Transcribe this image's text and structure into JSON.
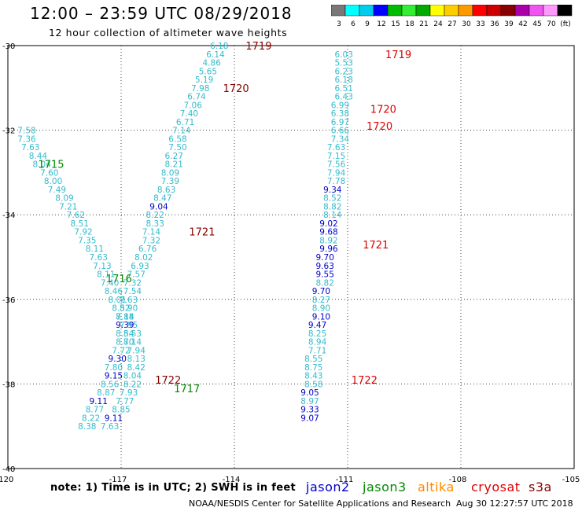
{
  "header": {
    "title": "12:00 – 23:59 UTC 08/29/2018",
    "subtitle": "12 hour collection of altimeter wave heights"
  },
  "footer": {
    "note": "note: 1) Time is in UTC; 2) SWH is in feet",
    "satellites": [
      {
        "name": "jason2",
        "color": "#0000cc"
      },
      {
        "name": "jason3",
        "color": "#008800"
      },
      {
        "name": "altika",
        "color": "#ff8800"
      },
      {
        "name": "cryosat",
        "color": "#dd0000"
      },
      {
        "name": "s3a",
        "color": "#880000"
      }
    ],
    "credit": "NOAA/NESDIS Center for Satellite Applications and Research",
    "timestamp": "Aug 30 12:27:57 UTC 2018"
  },
  "colors": {
    "low_swh": "#33bbcc",
    "mid_swh": "#0000cc",
    "time_red": "#dd0000",
    "time_dark": "#880000",
    "time_green": "#008800"
  },
  "chart_data": {
    "type": "scatter",
    "title": "12:00 – 23:59 UTC 08/29/2018",
    "subtitle": "12 hour collection of altimeter wave heights",
    "xlabel": "",
    "ylabel": "",
    "xlim": [
      -120,
      -105
    ],
    "ylim": [
      -40,
      -30
    ],
    "x_ticks": [
      "-120",
      "-117",
      "-114",
      "-111",
      "-108",
      "-105"
    ],
    "y_ticks": [
      "-30",
      "-32",
      "-34",
      "-36",
      "-38",
      "-40"
    ],
    "grid": true,
    "legend": {
      "labels": [
        "3",
        "6",
        "9",
        "12",
        "15",
        "18",
        "21",
        "24",
        "27",
        "30",
        "33",
        "36",
        "39",
        "42",
        "45",
        "70",
        "(ft)"
      ],
      "colors": [
        "#777777",
        "#00ffff",
        "#00ccee",
        "#0000ff",
        "#00bb00",
        "#33ee33",
        "#00aa00",
        "#ffff00",
        "#ffcc00",
        "#ff9900",
        "#ff0000",
        "#cc0000",
        "#880000",
        "#aa00aa",
        "#ee55ee",
        "#ff99ff",
        "#000000"
      ]
    },
    "series": [
      {
        "values": [
          [
            -114.4,
            -30.0,
            "6.18"
          ],
          [
            -114.5,
            -30.2,
            "6.14"
          ],
          [
            -114.6,
            -30.4,
            "4.86"
          ],
          [
            -114.7,
            -30.6,
            "5.65"
          ],
          [
            -114.8,
            -30.8,
            "5.19"
          ],
          [
            -114.9,
            -31.0,
            "7.98"
          ],
          [
            -115.0,
            -31.2,
            "6.74"
          ],
          [
            -115.1,
            -31.4,
            "7.06"
          ],
          [
            -115.2,
            -31.6,
            "7.40"
          ],
          [
            -115.3,
            -31.8,
            "6.71"
          ],
          [
            -115.4,
            -32.0,
            "7.14"
          ],
          [
            -115.5,
            -32.2,
            "6.58"
          ],
          [
            -115.5,
            -32.4,
            "7.50"
          ],
          [
            -115.6,
            -32.6,
            "6.27"
          ],
          [
            -115.6,
            -32.8,
            "8.21"
          ],
          [
            -115.7,
            -33.0,
            "8.09"
          ],
          [
            -115.7,
            -33.2,
            "7.39"
          ],
          [
            -115.8,
            -33.4,
            "8.63"
          ],
          [
            -115.9,
            -33.6,
            "8.47"
          ],
          [
            -116.0,
            -33.8,
            "9.04"
          ],
          [
            -116.1,
            -34.0,
            "8.22"
          ],
          [
            -116.1,
            -34.2,
            "8.33"
          ],
          [
            -116.2,
            -34.4,
            "7.14"
          ],
          [
            -116.2,
            -34.6,
            "7.32"
          ],
          [
            -116.3,
            -34.8,
            "6.76"
          ],
          [
            -116.4,
            -35.0,
            "8.02"
          ],
          [
            -116.5,
            -35.2,
            "6.93"
          ],
          [
            -116.6,
            -35.4,
            "7.57"
          ],
          [
            -116.7,
            -35.6,
            "7.32"
          ],
          [
            -116.7,
            -35.8,
            "7.54"
          ],
          [
            -116.8,
            -36.0,
            "7.63"
          ],
          [
            -116.8,
            -36.2,
            "8.90"
          ],
          [
            -116.9,
            -36.4,
            "8.14"
          ],
          [
            -116.9,
            -36.6,
            "9.39"
          ],
          [
            -116.9,
            -36.8,
            "8.54"
          ],
          [
            -116.9,
            -37.0,
            "8.70"
          ],
          [
            -117.0,
            -37.2,
            "7.72"
          ],
          [
            -117.1,
            -37.4,
            "9.30"
          ],
          [
            -117.2,
            -37.6,
            "7.80"
          ],
          [
            -117.2,
            -37.8,
            "9.15"
          ],
          [
            -117.3,
            -38.0,
            "8.56"
          ],
          [
            -117.4,
            -38.2,
            "8.87"
          ],
          [
            -117.6,
            -38.4,
            "9.11"
          ],
          [
            -117.7,
            -38.6,
            "8.77"
          ],
          [
            -117.8,
            -38.8,
            "8.22"
          ],
          [
            -117.9,
            -39.0,
            "8.38"
          ]
        ]
      },
      {
        "values": [
          [
            -119.5,
            -32.0,
            "7.58"
          ],
          [
            -119.5,
            -32.2,
            "7.36"
          ],
          [
            -119.4,
            -32.4,
            "7.63"
          ],
          [
            -119.2,
            -32.6,
            "8.44"
          ],
          [
            -119.1,
            -32.8,
            "8.04"
          ],
          [
            -118.9,
            -33.0,
            "7.60"
          ],
          [
            -118.8,
            -33.2,
            "8.00"
          ],
          [
            -118.7,
            -33.4,
            "7.49"
          ],
          [
            -118.5,
            -33.6,
            "8.09"
          ],
          [
            -118.4,
            -33.8,
            "7.21"
          ],
          [
            -118.2,
            -34.0,
            "7.62"
          ],
          [
            -118.1,
            -34.2,
            "8.51"
          ],
          [
            -118.0,
            -34.4,
            "7.92"
          ],
          [
            -117.9,
            -34.6,
            "7.35"
          ],
          [
            -117.7,
            -34.8,
            "8.11"
          ],
          [
            -117.6,
            -35.0,
            "7.63"
          ],
          [
            -117.5,
            -35.2,
            "7.13"
          ],
          [
            -117.4,
            -35.4,
            "8.11"
          ],
          [
            -117.3,
            -35.6,
            "7.40"
          ],
          [
            -117.2,
            -35.8,
            "8.46"
          ],
          [
            -117.1,
            -36.0,
            "8.01"
          ],
          [
            -117.0,
            -36.2,
            "8.52"
          ],
          [
            -116.9,
            -36.4,
            "7.88"
          ],
          [
            -116.8,
            -36.6,
            "7.95"
          ],
          [
            -116.7,
            -36.8,
            "8.53"
          ],
          [
            -116.7,
            -37.0,
            "8.14"
          ],
          [
            -116.6,
            -37.2,
            "7.94"
          ],
          [
            -116.6,
            -37.4,
            "8.13"
          ],
          [
            -116.6,
            -37.6,
            "8.42"
          ],
          [
            -116.7,
            -37.8,
            "8.04"
          ],
          [
            -116.7,
            -38.0,
            "8.22"
          ],
          [
            -116.8,
            -38.2,
            "7.93"
          ],
          [
            -116.9,
            -38.4,
            "7.77"
          ],
          [
            -117.0,
            -38.6,
            "8.85"
          ],
          [
            -117.2,
            -38.8,
            "9.11"
          ],
          [
            -117.3,
            -39.0,
            "7.63"
          ]
        ]
      },
      {
        "values": [
          [
            -111.1,
            -30.2,
            "6.03"
          ],
          [
            -111.1,
            -30.4,
            "5.53"
          ],
          [
            -111.1,
            -30.6,
            "6.23"
          ],
          [
            -111.1,
            -30.8,
            "6.18"
          ],
          [
            -111.1,
            -31.0,
            "6.51"
          ],
          [
            -111.1,
            -31.2,
            "6.43"
          ],
          [
            -111.2,
            -31.4,
            "6.99"
          ],
          [
            -111.2,
            -31.6,
            "6.38"
          ],
          [
            -111.2,
            -31.8,
            "6.97"
          ],
          [
            -111.2,
            -32.0,
            "6.66"
          ],
          [
            -111.2,
            -32.2,
            "7.34"
          ],
          [
            -111.3,
            -32.4,
            "7.63"
          ],
          [
            -111.3,
            -32.6,
            "7.15"
          ],
          [
            -111.3,
            -32.8,
            "7.56"
          ],
          [
            -111.3,
            -33.0,
            "7.94"
          ],
          [
            -111.3,
            -33.2,
            "7.78"
          ],
          [
            -111.4,
            -33.4,
            "9.34"
          ],
          [
            -111.4,
            -33.6,
            "8.52"
          ],
          [
            -111.4,
            -33.8,
            "8.82"
          ],
          [
            -111.4,
            -34.0,
            "8.14"
          ],
          [
            -111.5,
            -34.2,
            "9.02"
          ],
          [
            -111.5,
            -34.4,
            "9.68"
          ],
          [
            -111.5,
            -34.6,
            "8.92"
          ],
          [
            -111.5,
            -34.8,
            "9.96"
          ],
          [
            -111.6,
            -35.0,
            "9.70"
          ],
          [
            -111.6,
            -35.2,
            "9.63"
          ],
          [
            -111.6,
            -35.4,
            "9.55"
          ],
          [
            -111.6,
            -35.6,
            "8.82"
          ],
          [
            -111.7,
            -35.8,
            "9.70"
          ],
          [
            -111.7,
            -36.0,
            "8.27"
          ],
          [
            -111.7,
            -36.2,
            "8.90"
          ],
          [
            -111.7,
            -36.4,
            "9.10"
          ],
          [
            -111.8,
            -36.6,
            "9.47"
          ],
          [
            -111.8,
            -36.8,
            "8.25"
          ],
          [
            -111.8,
            -37.0,
            "8.94"
          ],
          [
            -111.8,
            -37.2,
            "7.71"
          ],
          [
            -111.9,
            -37.4,
            "8.55"
          ],
          [
            -111.9,
            -37.6,
            "8.75"
          ],
          [
            -111.9,
            -37.8,
            "8.43"
          ],
          [
            -111.9,
            -38.0,
            "8.58"
          ],
          [
            -112.0,
            -38.2,
            "9.05"
          ],
          [
            -112.0,
            -38.4,
            "8.97"
          ],
          [
            -112.0,
            -38.6,
            "9.33"
          ],
          [
            -112.0,
            -38.8,
            "9.07"
          ]
        ]
      }
    ],
    "annotations": [
      {
        "x": -113.7,
        "y": -30.0,
        "text": "1719",
        "color": "#880000"
      },
      {
        "x": -114.3,
        "y": -31.0,
        "text": "1720",
        "color": "#880000"
      },
      {
        "x": -115.2,
        "y": -34.4,
        "text": "1721",
        "color": "#880000"
      },
      {
        "x": -116.1,
        "y": -37.9,
        "text": "1722",
        "color": "#880000"
      },
      {
        "x": -119.2,
        "y": -32.8,
        "text": "1715",
        "color": "#008800"
      },
      {
        "x": -117.4,
        "y": -35.5,
        "text": "1716",
        "color": "#008800"
      },
      {
        "x": -115.6,
        "y": -38.1,
        "text": "1717",
        "color": "#008800"
      },
      {
        "x": -110.0,
        "y": -30.2,
        "text": "1719",
        "color": "#dd0000"
      },
      {
        "x": -110.4,
        "y": -31.5,
        "text": "1720",
        "color": "#dd0000"
      },
      {
        "x": -110.5,
        "y": -31.9,
        "text": "1720",
        "color": "#dd0000"
      },
      {
        "x": -110.6,
        "y": -34.7,
        "text": "1721",
        "color": "#dd0000"
      },
      {
        "x": -110.9,
        "y": -37.9,
        "text": "1722",
        "color": "#dd0000"
      }
    ]
  }
}
